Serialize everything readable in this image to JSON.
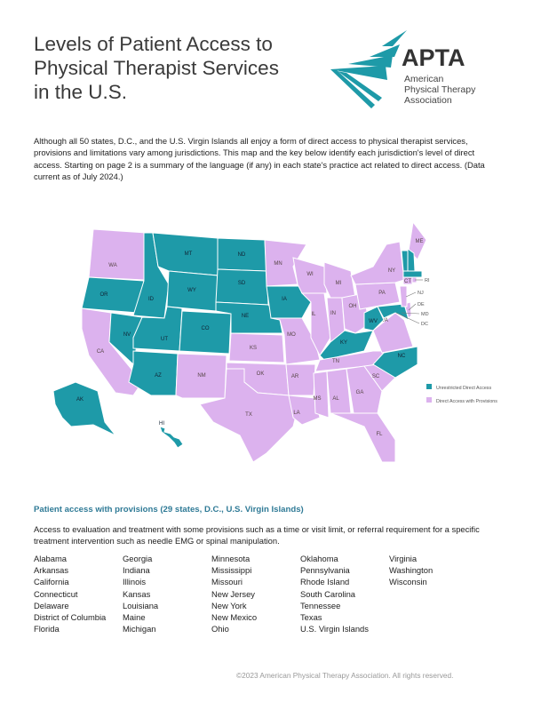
{
  "header": {
    "title_lines": [
      "Levels of Patient Access to",
      "Physical Therapist Services",
      "in the U.S."
    ]
  },
  "logo": {
    "wordmark": "APTA",
    "name_lines": [
      "American",
      "Physical Therapy",
      "Association"
    ]
  },
  "intro": "Although all 50 states, D.C., and the U.S. Virgin Islands all enjoy a form of direct access to physical therapist services, provisions and limitations vary among jurisdictions. This map and the key below identify each jurisdiction's level of direct access. Starting on page 2 is a summary of the language (if any) in each state's practice act related to direct access. (Data current as of July 2024.)",
  "map": {
    "colors": {
      "unrestricted": "#1e9aa8",
      "provisions": "#dcb2ee"
    },
    "legend": [
      {
        "label": "Unrestricted Direct Access",
        "key": "unrestricted"
      },
      {
        "label": "Direct Access with Provisions",
        "key": "provisions"
      }
    ],
    "unrestricted": [
      "OR",
      "ID",
      "MT",
      "WY",
      "ND",
      "SD",
      "NE",
      "IA",
      "NV",
      "UT",
      "CO",
      "AZ",
      "AK",
      "HI",
      "KY",
      "WV",
      "NC",
      "MD",
      "VT",
      "NH",
      "MA"
    ],
    "provisions": [
      "WA",
      "CA",
      "NM",
      "TX",
      "OK",
      "KS",
      "MN",
      "WI",
      "MI",
      "IL",
      "IN",
      "OH",
      "MO",
      "AR",
      "LA",
      "MS",
      "AL",
      "TN",
      "GA",
      "FL",
      "SC",
      "VA",
      "PA",
      "NY",
      "NJ",
      "DE",
      "CT",
      "RI",
      "ME",
      "DC"
    ],
    "callouts": [
      "RI",
      "NJ",
      "DE",
      "MD",
      "DC"
    ]
  },
  "provisions_section": {
    "heading": "Patient access with provisions (29 states, D.C., U.S. Virgin Islands)",
    "description": "Access to evaluation and treatment with some provisions such as a time or visit limit, or referral requirement for a specific treatment intervention such as needle EMG or spinal manipulation.",
    "columns": [
      [
        "Alabama",
        "Arkansas",
        "California",
        "Connecticut",
        "Delaware",
        "District of Columbia",
        "Florida"
      ],
      [
        "Georgia",
        "Indiana",
        "Illinois",
        "Kansas",
        "Louisiana",
        "Maine",
        "Michigan"
      ],
      [
        "Minnesota",
        "Mississippi",
        "Missouri",
        "New Jersey",
        "New York",
        "New Mexico",
        "Ohio"
      ],
      [
        "Oklahoma",
        "Pennsylvania",
        "Rhode Island",
        "South Carolina",
        "Tennessee",
        "Texas",
        "U.S. Virgin Islands"
      ],
      [
        "Virginia",
        "Washington",
        "Wisconsin"
      ]
    ]
  },
  "footer": "©2023 American Physical Therapy Association. All rights reserved."
}
